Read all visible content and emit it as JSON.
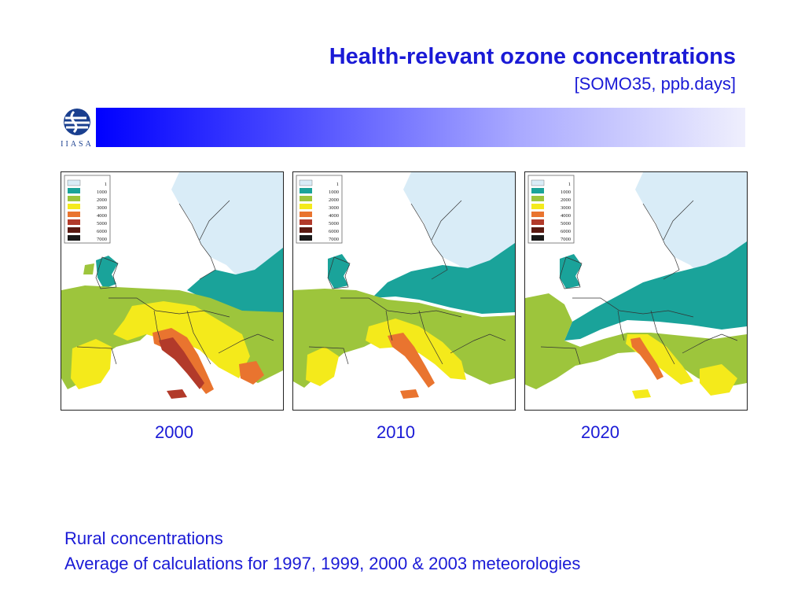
{
  "slide": {
    "title": "Health-relevant ozone concentrations",
    "subtitle": "[SOMO35, ppb.days]"
  },
  "logo": {
    "text": "IIASA"
  },
  "legend": {
    "entries": [
      {
        "label": "1",
        "color": "#d9ecf7"
      },
      {
        "label": "1000",
        "color": "#1aa39a"
      },
      {
        "label": "2000",
        "color": "#9dc53c"
      },
      {
        "label": "3000",
        "color": "#f4ea1b"
      },
      {
        "label": "4000",
        "color": "#e9742f"
      },
      {
        "label": "5000",
        "color": "#b23a2a"
      },
      {
        "label": "6000",
        "color": "#5a1a12"
      },
      {
        "label": "7000",
        "color": "#1a1a1a"
      }
    ]
  },
  "maps": [
    {
      "year": "2000"
    },
    {
      "year": "2010"
    },
    {
      "year": "2020"
    }
  ],
  "captions": {
    "line1": "Rural concentrations",
    "line2": "Average of calculations for 1997, 1999, 2000 & 2003 meteorologies"
  }
}
